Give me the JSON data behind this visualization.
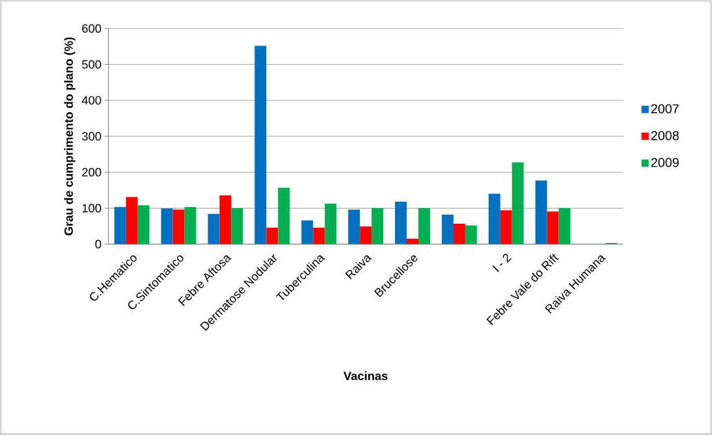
{
  "chart_data": {
    "type": "bar",
    "xlabel": "Vacinas",
    "ylabel": "Grau de cumprimento do plano (%)",
    "categories": [
      "C.Hematico",
      "C.Sintomatico",
      "Febre Aftosa",
      "Dermatose Nodular",
      "Tuberculina",
      "Raiva",
      "Brucellose",
      null,
      "I - 2",
      "Febre Vale do Rift",
      "Raiva Humana"
    ],
    "series": [
      {
        "name": "2007",
        "color": "#0070c0",
        "values": [
          103,
          99,
          84,
          552,
          66,
          96,
          118,
          82,
          140,
          177,
          0
        ]
      },
      {
        "name": "2008",
        "color": "#ff0000",
        "values": [
          131,
          96,
          136,
          46,
          46,
          49,
          15,
          57,
          94,
          91,
          0
        ]
      },
      {
        "name": "2009",
        "color": "#00b050",
        "values": [
          108,
          103,
          100,
          157,
          113,
          100,
          100,
          52,
          228,
          100,
          3
        ]
      }
    ],
    "ylim": [
      0,
      600
    ],
    "yticks": [
      0,
      100,
      200,
      300,
      400,
      500,
      600
    ],
    "grid": "y",
    "legend": "right"
  }
}
